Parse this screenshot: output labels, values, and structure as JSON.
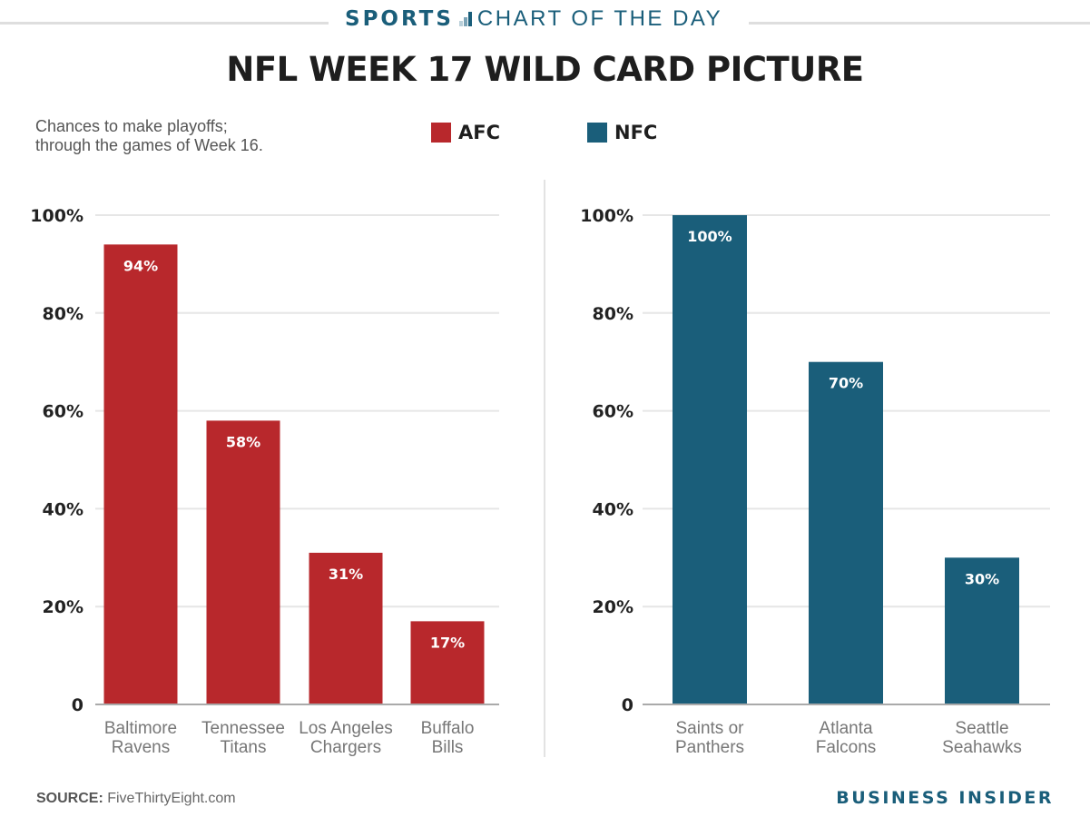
{
  "kicker": {
    "sports": "SPORTS",
    "label": "CHART OF THE DAY"
  },
  "title": "NFL WEEK 17 WILD CARD PICTURE",
  "subtitle": [
    "Chances to make playoffs;",
    "through the games of Week 16."
  ],
  "legend": [
    {
      "label": "AFC",
      "color": "#b8282c"
    },
    {
      "label": "NFC",
      "color": "#1a5e7a"
    }
  ],
  "colors": {
    "afc": "#b8282c",
    "nfc": "#1a5e7a",
    "brand": "#1a5e7a",
    "grid": "#e6e6e6",
    "axis": "#aaaaaa"
  },
  "chart_data": [
    {
      "type": "bar",
      "name": "AFC",
      "title": "",
      "xlabel": "",
      "ylabel": "",
      "ylim": [
        0,
        100
      ],
      "yticks": [
        0,
        20,
        40,
        60,
        80,
        100
      ],
      "ytick_labels": [
        "0",
        "20%",
        "40%",
        "60%",
        "80%",
        "100%"
      ],
      "grid": true,
      "categories": [
        [
          "Baltimore",
          "Ravens"
        ],
        [
          "Tennessee",
          "Titans"
        ],
        [
          "Los Angeles",
          "Chargers"
        ],
        [
          "Buffalo",
          "Bills"
        ]
      ],
      "values": [
        94,
        58,
        31,
        17
      ],
      "data_labels": [
        "94%",
        "58%",
        "31%",
        "17%"
      ],
      "color": "#b8282c"
    },
    {
      "type": "bar",
      "name": "NFC",
      "title": "",
      "xlabel": "",
      "ylabel": "",
      "ylim": [
        0,
        100
      ],
      "yticks": [
        0,
        20,
        40,
        60,
        80,
        100
      ],
      "ytick_labels": [
        "0",
        "20%",
        "40%",
        "60%",
        "80%",
        "100%"
      ],
      "grid": true,
      "categories": [
        [
          "Saints or",
          "Panthers"
        ],
        [
          "Atlanta",
          "Falcons"
        ],
        [
          "Seattle",
          "Seahawks"
        ]
      ],
      "values": [
        100,
        70,
        30
      ],
      "data_labels": [
        "100%",
        "70%",
        "30%"
      ],
      "color": "#1a5e7a"
    }
  ],
  "footer": {
    "source_label": "SOURCE:",
    "source_text": " FiveThirtyEight.com",
    "brand": "BUSINESS INSIDER"
  }
}
